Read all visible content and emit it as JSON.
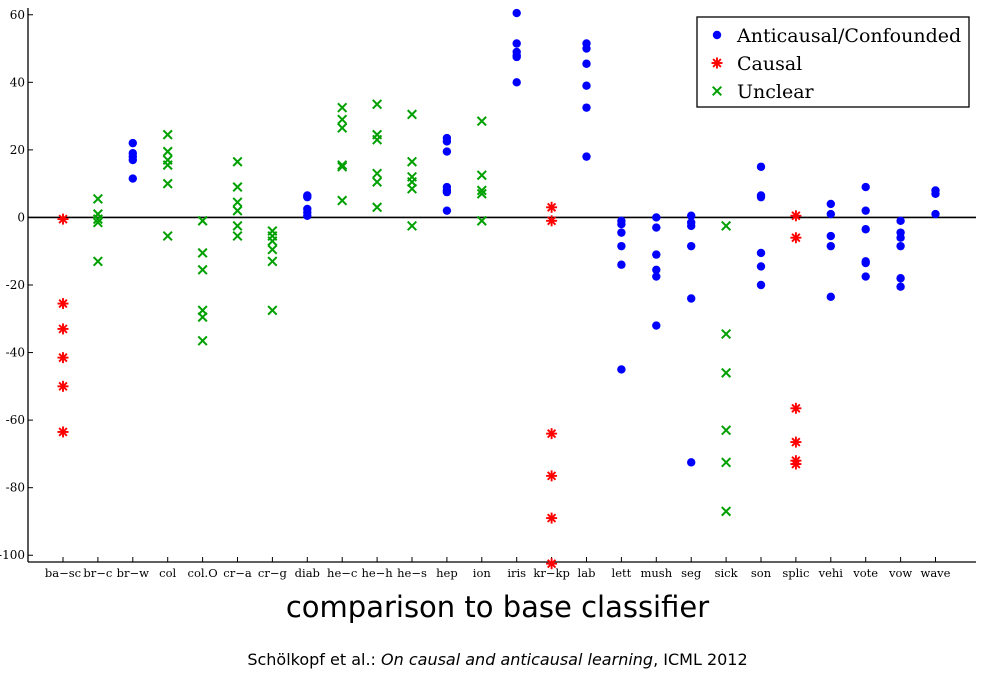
{
  "chart_data": {
    "type": "scatter",
    "ylim": [
      -102,
      62
    ],
    "yticks": [
      60,
      40,
      20,
      0,
      -20,
      -40,
      -60,
      -80,
      -100
    ],
    "categories": [
      "ba−sc",
      "br−c",
      "br−w",
      "col",
      "col.O",
      "cr−a",
      "cr−g",
      "diab",
      "he−c",
      "he−h",
      "he−s",
      "hep",
      "ion",
      "iris",
      "kr−kp",
      "lab",
      "lett",
      "mush",
      "seg",
      "sick",
      "son",
      "splic",
      "vehi",
      "vote",
      "vow",
      "wave"
    ],
    "series": [
      {
        "name": "Anticausal/Confounded",
        "color": "#0000ff",
        "marker": "dot",
        "points": [
          [
            2,
            22
          ],
          [
            2,
            19
          ],
          [
            2,
            18
          ],
          [
            2,
            17
          ],
          [
            2,
            11.5
          ],
          [
            7,
            6.5
          ],
          [
            7,
            6
          ],
          [
            7,
            2.5
          ],
          [
            7,
            1.5
          ],
          [
            7,
            0.5
          ],
          [
            11,
            23.5
          ],
          [
            11,
            22.5
          ],
          [
            11,
            19.5
          ],
          [
            11,
            9
          ],
          [
            11,
            8
          ],
          [
            11,
            7.5
          ],
          [
            11,
            2
          ],
          [
            13,
            60.5
          ],
          [
            13,
            51.5
          ],
          [
            13,
            49
          ],
          [
            13,
            48
          ],
          [
            13,
            47.5
          ],
          [
            13,
            40
          ],
          [
            15,
            51.5
          ],
          [
            15,
            50
          ],
          [
            15,
            45.5
          ],
          [
            15,
            39
          ],
          [
            15,
            32.5
          ],
          [
            15,
            18
          ],
          [
            16,
            -1
          ],
          [
            16,
            -2
          ],
          [
            16,
            -4.5
          ],
          [
            16,
            -8.5
          ],
          [
            16,
            -14
          ],
          [
            16,
            -45
          ],
          [
            17,
            0
          ],
          [
            17,
            -3
          ],
          [
            17,
            -11
          ],
          [
            17,
            -15.5
          ],
          [
            17,
            -17.5
          ],
          [
            17,
            -32
          ],
          [
            18,
            0.5
          ],
          [
            18,
            -1.5
          ],
          [
            18,
            -2.5
          ],
          [
            18,
            -8.5
          ],
          [
            18,
            -24
          ],
          [
            18,
            -72.5
          ],
          [
            20,
            15
          ],
          [
            20,
            6.5
          ],
          [
            20,
            6
          ],
          [
            20,
            -10.5
          ],
          [
            20,
            -14.5
          ],
          [
            20,
            -20
          ],
          [
            22,
            4
          ],
          [
            22,
            1
          ],
          [
            22,
            -5.5
          ],
          [
            22,
            -8.5
          ],
          [
            22,
            -23.5
          ],
          [
            23,
            9
          ],
          [
            23,
            2
          ],
          [
            23,
            -3.5
          ],
          [
            23,
            -13
          ],
          [
            23,
            -13.5
          ],
          [
            23,
            -17.5
          ],
          [
            24,
            -1
          ],
          [
            24,
            -4.5
          ],
          [
            24,
            -6
          ],
          [
            24,
            -8.5
          ],
          [
            24,
            -18
          ],
          [
            24,
            -20.5
          ],
          [
            25,
            8
          ],
          [
            25,
            7
          ],
          [
            25,
            1
          ]
        ]
      },
      {
        "name": "Causal",
        "color": "#ff0000",
        "marker": "star",
        "points": [
          [
            0,
            -0.5
          ],
          [
            0,
            -25.5
          ],
          [
            0,
            -33
          ],
          [
            0,
            -41.5
          ],
          [
            0,
            -50
          ],
          [
            0,
            -63.5
          ],
          [
            14,
            3
          ],
          [
            14,
            -1
          ],
          [
            14,
            -64
          ],
          [
            14,
            -76.5
          ],
          [
            14,
            -89
          ],
          [
            14,
            -102.5
          ],
          [
            21,
            0.5
          ],
          [
            21,
            -6
          ],
          [
            21,
            -56.5
          ],
          [
            21,
            -66.5
          ],
          [
            21,
            -72
          ],
          [
            21,
            -73
          ]
        ]
      },
      {
        "name": "Unclear",
        "color": "#00a000",
        "marker": "cross",
        "points": [
          [
            1,
            5.5
          ],
          [
            1,
            1
          ],
          [
            1,
            -0.5
          ],
          [
            1,
            -1.5
          ],
          [
            1,
            -13
          ],
          [
            3,
            24.5
          ],
          [
            3,
            19.5
          ],
          [
            3,
            17
          ],
          [
            3,
            15.5
          ],
          [
            3,
            10
          ],
          [
            3,
            -5.5
          ],
          [
            4,
            -1
          ],
          [
            4,
            -10.5
          ],
          [
            4,
            -15.5
          ],
          [
            4,
            -27.5
          ],
          [
            4,
            -29.5
          ],
          [
            4,
            -36.5
          ],
          [
            5,
            16.5
          ],
          [
            5,
            9
          ],
          [
            5,
            4.5
          ],
          [
            5,
            2
          ],
          [
            5,
            -2.5
          ],
          [
            5,
            -5.5
          ],
          [
            6,
            -4
          ],
          [
            6,
            -5.5
          ],
          [
            6,
            -7
          ],
          [
            6,
            -9.5
          ],
          [
            6,
            -13
          ],
          [
            6,
            -27.5
          ],
          [
            8,
            32.5
          ],
          [
            8,
            29
          ],
          [
            8,
            26.5
          ],
          [
            8,
            15.5
          ],
          [
            8,
            15
          ],
          [
            8,
            5
          ],
          [
            9,
            33.5
          ],
          [
            9,
            24.5
          ],
          [
            9,
            23
          ],
          [
            9,
            13
          ],
          [
            9,
            10.5
          ],
          [
            9,
            3
          ],
          [
            10,
            30.5
          ],
          [
            10,
            16.5
          ],
          [
            10,
            12
          ],
          [
            10,
            10.5
          ],
          [
            10,
            8.5
          ],
          [
            10,
            -2.5
          ],
          [
            12,
            28.5
          ],
          [
            12,
            12.5
          ],
          [
            12,
            8
          ],
          [
            12,
            7
          ],
          [
            12,
            -1
          ],
          [
            19,
            -2.5
          ],
          [
            19,
            -34.5
          ],
          [
            19,
            -46
          ],
          [
            19,
            -63
          ],
          [
            19,
            -72.5
          ],
          [
            19,
            -87
          ]
        ]
      }
    ],
    "legend_position": "top-right",
    "xlabel": "comparison to base classifier"
  },
  "caption": {
    "authors": "Schölkopf et al.: ",
    "title": "On causal and anticausal learning",
    "venue": ", ICML 2012"
  }
}
